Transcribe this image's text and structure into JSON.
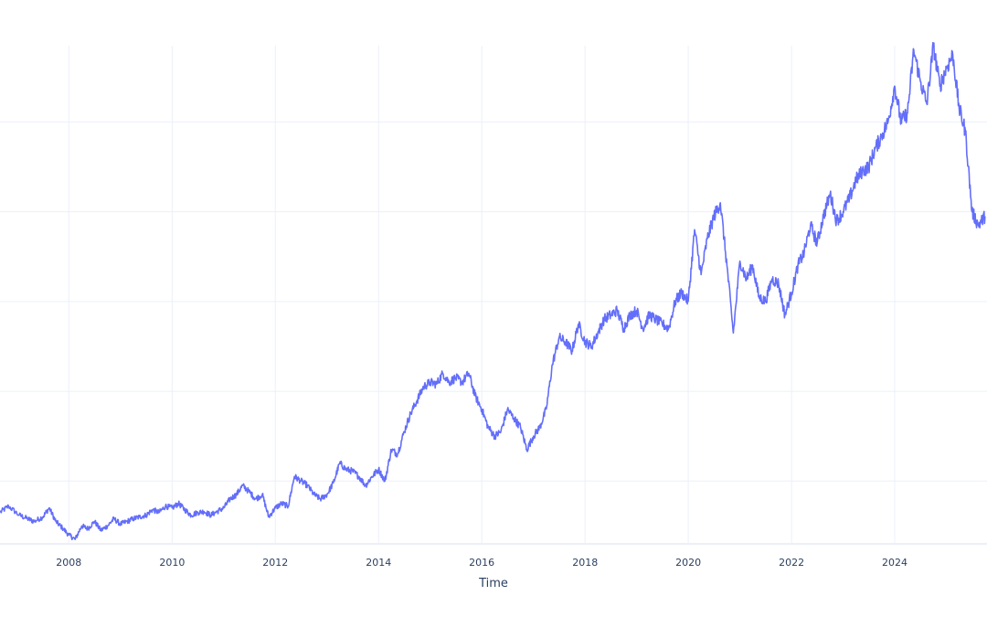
{
  "chart_data": {
    "type": "line",
    "title": "",
    "xlabel": "Time",
    "ylabel": "",
    "x_type": "date",
    "xlim": [
      "2006-09-01",
      "2025-10-15"
    ],
    "ylim": [
      0.3,
      5.85
    ],
    "grid": true,
    "legend": "none",
    "line_color": "#636efa",
    "x_ticks": [
      "2008",
      "2010",
      "2012",
      "2014",
      "2016",
      "2018",
      "2020",
      "2022",
      "2024"
    ],
    "y_gridlines": [
      1,
      2,
      3,
      4,
      5
    ],
    "series": [
      {
        "x": [
          "2006-09-01",
          "2006-11-01",
          "2007-01-15",
          "2007-03-15",
          "2007-05-01",
          "2007-07-01",
          "2007-08-15",
          "2007-10-01",
          "2007-11-15",
          "2008-01-01",
          "2008-02-15",
          "2008-04-01",
          "2008-05-15",
          "2008-07-01",
          "2008-08-15",
          "2008-10-01",
          "2008-11-15",
          "2009-01-01",
          "2009-02-15",
          "2009-04-01",
          "2009-05-15",
          "2009-07-01",
          "2009-08-15",
          "2009-10-01",
          "2009-11-15",
          "2010-01-01",
          "2010-02-15",
          "2010-04-01",
          "2010-05-15",
          "2010-07-01",
          "2010-08-15",
          "2010-10-01",
          "2010-11-15",
          "2011-01-01",
          "2011-02-15",
          "2011-04-01",
          "2011-05-15",
          "2011-07-01",
          "2011-08-15",
          "2011-10-01",
          "2011-11-15",
          "2012-01-01",
          "2012-02-15",
          "2012-04-01",
          "2012-05-15",
          "2012-07-01",
          "2012-08-15",
          "2012-10-01",
          "2012-11-15",
          "2013-01-01",
          "2013-02-15",
          "2013-04-01",
          "2013-05-15",
          "2013-07-01",
          "2013-08-15",
          "2013-10-01",
          "2013-11-15",
          "2014-01-01",
          "2014-02-15",
          "2014-04-01",
          "2014-05-15",
          "2014-07-01",
          "2014-08-15",
          "2014-10-01",
          "2014-11-15",
          "2015-01-01",
          "2015-02-15",
          "2015-04-01",
          "2015-05-15",
          "2015-07-01",
          "2015-08-15",
          "2015-10-01",
          "2015-11-15",
          "2016-01-01",
          "2016-02-15",
          "2016-04-01",
          "2016-05-15",
          "2016-07-01",
          "2016-08-15",
          "2016-10-01",
          "2016-11-15",
          "2017-01-01",
          "2017-02-15",
          "2017-04-01",
          "2017-05-15",
          "2017-07-01",
          "2017-08-15",
          "2017-10-01",
          "2017-11-15",
          "2018-01-01",
          "2018-02-15",
          "2018-04-01",
          "2018-05-15",
          "2018-07-01",
          "2018-08-15",
          "2018-10-01",
          "2018-11-15",
          "2019-01-01",
          "2019-02-15",
          "2019-04-01",
          "2019-05-15",
          "2019-07-01",
          "2019-08-15",
          "2019-10-01",
          "2019-11-15",
          "2020-01-01",
          "2020-02-15",
          "2020-04-01",
          "2020-05-15",
          "2020-07-01",
          "2020-08-15",
          "2020-10-01",
          "2020-11-15",
          "2021-01-01",
          "2021-02-15",
          "2021-04-01",
          "2021-05-15",
          "2021-07-01",
          "2021-08-15",
          "2021-10-01",
          "2021-11-15",
          "2022-01-01",
          "2022-02-15",
          "2022-04-01",
          "2022-05-15",
          "2022-07-01",
          "2022-08-15",
          "2022-10-01",
          "2022-11-15",
          "2023-01-01",
          "2023-02-15",
          "2023-04-01",
          "2023-05-15",
          "2023-07-01",
          "2023-08-15",
          "2023-10-01",
          "2023-11-15",
          "2024-01-01",
          "2024-02-15",
          "2024-04-01",
          "2024-05-15",
          "2024-07-01",
          "2024-08-15",
          "2024-10-01",
          "2024-11-15",
          "2025-01-01",
          "2025-02-15",
          "2025-04-01",
          "2025-05-15",
          "2025-07-01",
          "2025-08-15",
          "2025-10-01"
        ],
        "y": [
          0.65,
          0.72,
          0.62,
          0.58,
          0.55,
          0.6,
          0.7,
          0.55,
          0.48,
          0.4,
          0.35,
          0.5,
          0.47,
          0.55,
          0.45,
          0.5,
          0.58,
          0.52,
          0.55,
          0.58,
          0.6,
          0.62,
          0.68,
          0.65,
          0.72,
          0.7,
          0.75,
          0.68,
          0.62,
          0.65,
          0.66,
          0.62,
          0.66,
          0.7,
          0.8,
          0.85,
          0.95,
          0.88,
          0.8,
          0.85,
          0.6,
          0.7,
          0.75,
          0.72,
          1.05,
          1.0,
          0.95,
          0.85,
          0.8,
          0.85,
          0.98,
          1.2,
          1.13,
          1.11,
          1.05,
          0.95,
          1.05,
          1.13,
          1.0,
          1.35,
          1.3,
          1.55,
          1.75,
          1.9,
          2.05,
          2.1,
          2.08,
          2.2,
          2.1,
          2.15,
          2.1,
          2.2,
          1.95,
          1.8,
          1.6,
          1.5,
          1.55,
          1.8,
          1.7,
          1.6,
          1.35,
          1.5,
          1.6,
          1.8,
          2.3,
          2.6,
          2.55,
          2.45,
          2.75,
          2.55,
          2.5,
          2.65,
          2.8,
          2.85,
          2.9,
          2.7,
          2.85,
          2.9,
          2.7,
          2.85,
          2.8,
          2.75,
          2.7,
          3.0,
          3.1,
          3.0,
          3.8,
          3.3,
          3.7,
          3.95,
          4.1,
          3.4,
          2.65,
          3.45,
          3.25,
          3.4,
          3.05,
          3.0,
          3.25,
          3.2,
          2.85,
          3.1,
          3.4,
          3.55,
          3.85,
          3.65,
          3.95,
          4.2,
          3.9,
          4.0,
          4.15,
          4.35,
          4.45,
          4.5,
          4.7,
          4.85,
          5.0,
          5.4,
          5.0,
          5.1,
          5.8,
          5.45,
          5.2,
          5.85,
          5.4,
          5.6,
          5.75,
          5.15,
          4.9,
          4.0,
          3.85,
          3.95
        ]
      }
    ]
  }
}
